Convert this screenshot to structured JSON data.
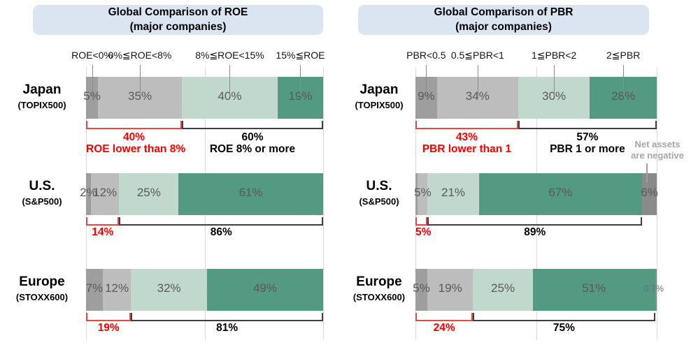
{
  "colors": {
    "title_box_bg": "#dbe5f1",
    "gridline": "#d9d9d9",
    "bracket_red": "#e04a42",
    "bracket_black": "#3f3f3f",
    "text_red": "#ff0000",
    "segment_label": "#595959",
    "note_gray": "#a6a6a6",
    "series": {
      "s0": "#9e9e9e",
      "s1": "#bdbdbd",
      "s2": "#c1d9cd",
      "s3": "#549981",
      "net": "#8a8a8a"
    }
  },
  "chart_data": [
    {
      "type": "bar",
      "stacked": true,
      "orientation": "horizontal",
      "title_lines": [
        "Global Comparison of ROE",
        "(major companies)"
      ],
      "title": "Global Comparison of ROE (major companies)",
      "axis_categories": [
        "ROE<0%",
        "0%≦ROE<8%",
        "8%≦ROE<15%",
        "15%≦ROE"
      ],
      "rows": [
        {
          "label": "Japan",
          "sublabel": "(TOPIX500)",
          "segments": [
            {
              "series": "s0",
              "value": 5,
              "label": "5%"
            },
            {
              "series": "s1",
              "value": 35,
              "label": "35%"
            },
            {
              "series": "s2",
              "value": 40,
              "label": "40%"
            },
            {
              "series": "s3",
              "value": 19,
              "label": "19%"
            }
          ],
          "bracket_low": {
            "start": 0,
            "end": 40,
            "label": "40%",
            "desc": "ROE lower than 8%"
          },
          "bracket_high": {
            "start": 40,
            "end": 99,
            "label": "60%",
            "desc": "ROE 8% or more"
          }
        },
        {
          "label": "U.S.",
          "sublabel": "(S&P500)",
          "segments": [
            {
              "series": "s0",
              "value": 2,
              "label": "2%"
            },
            {
              "series": "s1",
              "value": 12,
              "label": "12%"
            },
            {
              "series": "s2",
              "value": 25,
              "label": "25%"
            },
            {
              "series": "s3",
              "value": 61,
              "label": "61%"
            }
          ],
          "bracket_low": {
            "start": 0,
            "end": 14,
            "label": "14%"
          },
          "bracket_high": {
            "start": 14,
            "end": 100,
            "label": "86%"
          }
        },
        {
          "label": "Europe",
          "sublabel": "(STOXX600)",
          "segments": [
            {
              "series": "s0",
              "value": 7,
              "label": "7%"
            },
            {
              "series": "s1",
              "value": 12,
              "label": "12%"
            },
            {
              "series": "s2",
              "value": 32,
              "label": "32%"
            },
            {
              "series": "s3",
              "value": 49,
              "label": "49%"
            }
          ],
          "bracket_low": {
            "start": 0,
            "end": 19,
            "label": "19%"
          },
          "bracket_high": {
            "start": 19,
            "end": 100,
            "label": "81%"
          }
        }
      ]
    },
    {
      "type": "bar",
      "stacked": true,
      "orientation": "horizontal",
      "title_lines": [
        "Global Comparison of PBR",
        "(major companies)"
      ],
      "title": "Global Comparison of PBR (major companies)",
      "axis_categories": [
        "PBR<0.5",
        "0.5≦PBR<1",
        "1≦PBR<2",
        "2≦PBR"
      ],
      "net_series_name": "Net assets are negative",
      "note": {
        "line1": "Net assets",
        "line2": "are negative"
      },
      "rows": [
        {
          "label": "Japan",
          "sublabel": "(TOPIX500)",
          "segments": [
            {
              "series": "s0",
              "value": 9,
              "label": "9%"
            },
            {
              "series": "s1",
              "value": 34,
              "label": "34%"
            },
            {
              "series": "s2",
              "value": 30,
              "label": "30%"
            },
            {
              "series": "s3",
              "value": 28,
              "label": "28%"
            }
          ],
          "bracket_low": {
            "start": 0,
            "end": 43,
            "label": "43%",
            "desc": "PBR lower than 1"
          },
          "bracket_high": {
            "start": 43,
            "end": 101,
            "label": "57%",
            "desc": "PBR 1 or more"
          }
        },
        {
          "label": "U.S.",
          "sublabel": "(S&P500)",
          "segments": [
            {
              "series": "s0",
              "value": 1,
              "label": ""
            },
            {
              "series": "s1",
              "value": 4,
              "label": "5%"
            },
            {
              "series": "s2",
              "value": 21,
              "label": "21%"
            },
            {
              "series": "s3",
              "value": 67,
              "label": "67%"
            },
            {
              "series": "net",
              "value": 6,
              "label": "6%"
            }
          ],
          "bracket_low": {
            "start": 0,
            "end": 5,
            "label": "5%"
          },
          "bracket_high": {
            "start": 5,
            "end": 93,
            "label": "89%"
          }
        },
        {
          "label": "Europe",
          "sublabel": "(STOXX600)",
          "segments": [
            {
              "series": "s0",
              "value": 5,
              "label": "5%"
            },
            {
              "series": "s1",
              "value": 19,
              "label": "19%"
            },
            {
              "series": "s2",
              "value": 25,
              "label": "25%"
            },
            {
              "series": "s3",
              "value": 51,
              "label": "51%"
            },
            {
              "series": "net",
              "value": 0.7,
              "label": "0.7%",
              "small": true
            }
          ],
          "bracket_low": {
            "start": 0,
            "end": 24,
            "label": "24%"
          },
          "bracket_high": {
            "start": 24,
            "end": 100,
            "label": "75%"
          }
        }
      ]
    }
  ]
}
